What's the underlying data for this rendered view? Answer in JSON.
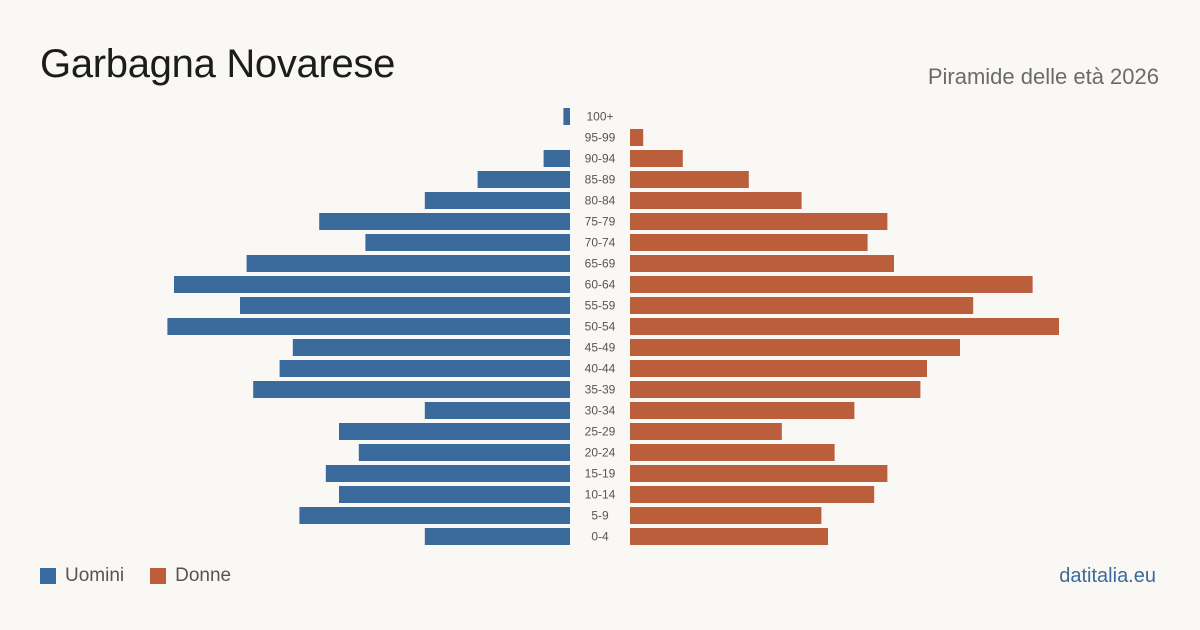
{
  "header": {
    "title": "Garbagna Novarese",
    "subtitle": "Piramide delle età 2026"
  },
  "legend": {
    "men_label": "Uomini",
    "women_label": "Donne"
  },
  "footer": {
    "site": "datitalia.eu"
  },
  "colors": {
    "men": "#3a6b9c",
    "women": "#bb5e3c"
  },
  "chart_data": {
    "type": "bar",
    "orientation": "horizontal-pyramid",
    "categories": [
      "100+",
      "95-99",
      "90-94",
      "85-89",
      "80-84",
      "75-79",
      "70-74",
      "65-69",
      "60-64",
      "55-59",
      "50-54",
      "45-49",
      "40-44",
      "35-39",
      "30-34",
      "25-29",
      "20-24",
      "15-19",
      "10-14",
      "5-9",
      "0-4"
    ],
    "series": [
      {
        "name": "Uomini",
        "values": [
          1,
          0,
          4,
          14,
          22,
          38,
          31,
          49,
          60,
          50,
          61,
          42,
          44,
          48,
          22,
          35,
          32,
          37,
          35,
          41,
          22
        ]
      },
      {
        "name": "Donne",
        "values": [
          0,
          2,
          8,
          18,
          26,
          39,
          36,
          40,
          61,
          52,
          65,
          50,
          45,
          44,
          34,
          23,
          31,
          39,
          37,
          29,
          30
        ]
      }
    ],
    "legend_position": "bottom-left",
    "grid": false
  }
}
